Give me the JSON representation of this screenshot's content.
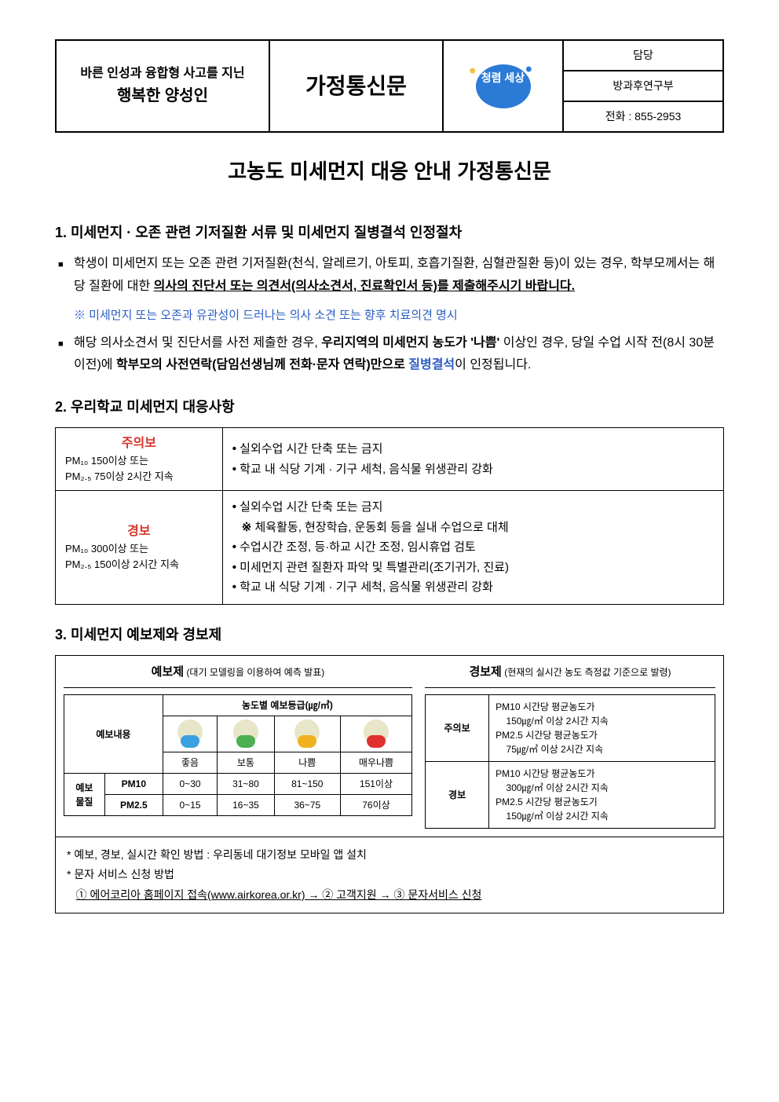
{
  "header": {
    "slogan_line1": "바른 인성과 융합형 사고를 지닌",
    "slogan_line2": "행복한 양성인",
    "doc_type": "가정통신문",
    "logo_text": "청렴 세상",
    "contact_label": "담당",
    "dept": "방과후연구부",
    "phone_label": "전화 : 855-2953"
  },
  "title": "고농도 미세먼지 대응 안내 가정통신문",
  "sec1": {
    "heading": "1. 미세먼지 · 오존 관련 기저질환 서류 및 미세먼지 질병결석 인정절차",
    "b1_prefix": "학생이 미세먼지 또는 오존 관련 기저질환(천식, 알레르기, 아토피, 호흡기질환, 심혈관질환 등)이 있는 경우, 학부모께서는 해당 질환에 대한 ",
    "b1_u": "의사의 진단서 또는 의견서(의사소견서, 진료확인서 등)를 제출해주시기 바랍니다.",
    "note": "※ 미세먼지 또는 오존과 유관성이 드러나는 의사 소견 또는 향후 치료의견 명시",
    "b2_p1": "해당 의사소견서 및 진단서를 사전 제출한 경우, ",
    "b2_s1": "우리지역의 미세먼지 농도가 '나쁨'",
    "b2_p2": " 이상인 경우, 당일 수업 시작 전(8시 30분 이전)에 ",
    "b2_s2": "학부모의 사전연락(담임선생님께 전화·문자 연락)만으로 ",
    "b2_blue": "질병결석",
    "b2_p3": "이 인정됩니다."
  },
  "sec2": {
    "heading": "2. 우리학교 미세먼지 대응사항",
    "rows": [
      {
        "level_title": "주의보",
        "level_detail": "PM₁₀ 150이상 또는\nPM₂.₅ 75이상 2시간 지속",
        "actions": [
          "실외수업 시간 단축 또는 금지",
          "학교 내 식당 기계 · 기구 세척, 음식물 위생관리 강화"
        ]
      },
      {
        "level_title": "경보",
        "level_detail": "PM₁₀ 300이상 또는\nPM₂.₅ 150이상 2시간 지속",
        "actions": [
          "실외수업 시간 단축 또는 금지",
          "※체육활동, 현장학습, 운동회 등을 실내 수업으로 대체",
          "수업시간 조정, 등·하교 시간 조정, 임시휴업 검토",
          "미세먼지 관련 질환자 파악 및 특별관리(조기귀가, 진료)",
          "학교 내 식당 기계 · 기구 세척, 음식물 위생관리 강화"
        ]
      }
    ]
  },
  "sec3": {
    "heading": "3. 미세먼지 예보제와 경보제",
    "forecast": {
      "title": "예보제",
      "subtitle": " (대기 모델링을 이용하여 예측 발표)",
      "grade_header": "농도별 예보등급(㎍/㎥)",
      "content_label": "예보내용",
      "grades": [
        "좋음",
        "보통",
        "나쁨",
        "매우나쁨"
      ],
      "sub_label1": "예보",
      "sub_label2": "물질",
      "rows": [
        {
          "pm": "PM10",
          "cells": [
            "0~30",
            "31~80",
            "81~150",
            "151이상"
          ]
        },
        {
          "pm": "PM2.5",
          "cells": [
            "0~15",
            "16~35",
            "36~75",
            "76이상"
          ]
        }
      ]
    },
    "alert": {
      "title": "경보제",
      "subtitle": " (현재의 실시간 농도 측정값 기준으로 발령)",
      "rows": [
        {
          "type": "주의보",
          "lines": [
            "PM10 시간당 평균농도가",
            "150㎍/㎥ 이상 2시간 지속",
            "PM2.5 시간당 평균농도가",
            "75㎍/㎥ 이상 2시간 지속"
          ]
        },
        {
          "type": "경보",
          "lines": [
            "PM10 시간당 평균농도가",
            "300㎍/㎥ 이상 2시간 지속",
            "PM2.5 시간당 평균농도기",
            "150㎍/㎥ 이상 2시간 지속"
          ]
        }
      ]
    },
    "footer": {
      "f1": "예보, 경보, 실시간 확인 방법 : 우리동네 대기정보 모바일 앱 설치",
      "f2": "문자 서비스 신청 방법",
      "steps": "① 에어코리아 홈페이지 접속(www.airkorea.or.kr) → ② 고객지원 → ③ 문자서비스 신청"
    }
  }
}
